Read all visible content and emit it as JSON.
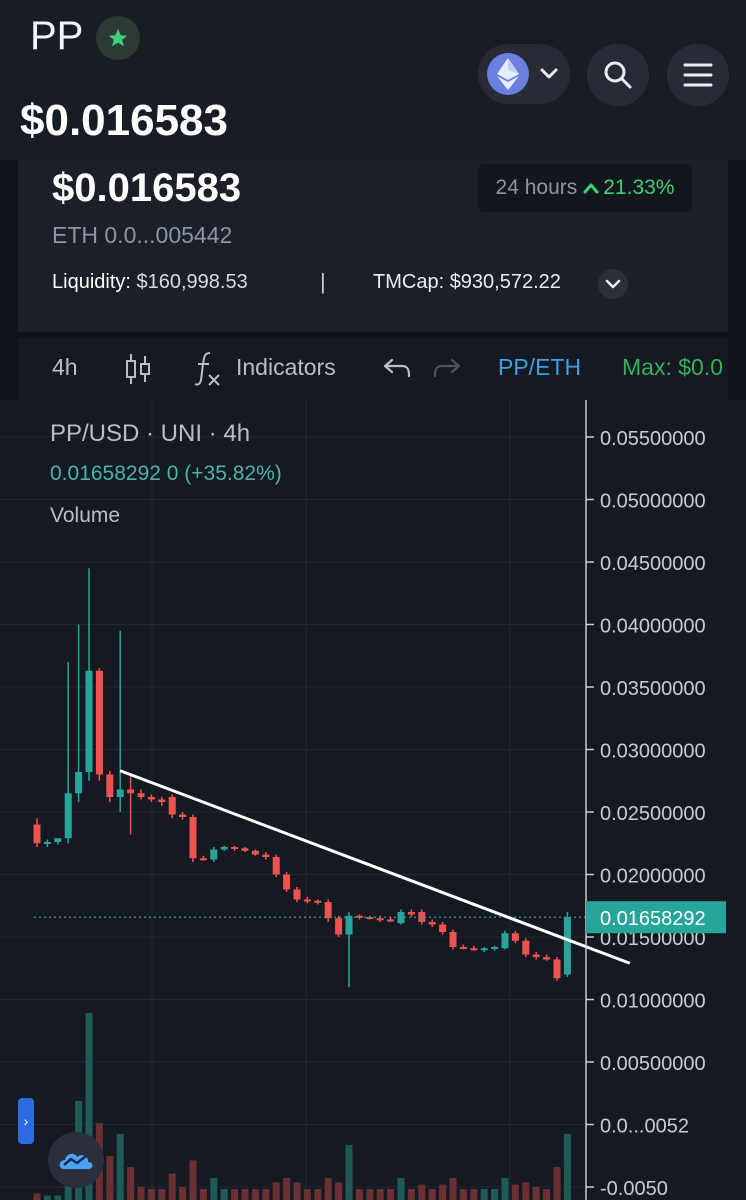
{
  "header": {
    "token_symbol": "PP",
    "price": "$0.016583",
    "icons": {
      "favorite": "star-icon",
      "chain": "ethereum-icon",
      "chain_menu": "chevron-down-icon",
      "search": "search-icon",
      "menu": "hamburger-menu-icon"
    }
  },
  "info": {
    "price_usd": "$0.016583",
    "price_eth": "ETH 0.0...005442",
    "change_period": "24 hours",
    "change_value": "21.33%",
    "liquidity_label": "Liquidity:",
    "liquidity_value": "$160,998.53",
    "separator": "|",
    "mcap_label": "TMCap:",
    "mcap_value": "$930,572.22"
  },
  "toolbar": {
    "interval": "4h",
    "indicators_label": "Indicators",
    "pair": "PP/ETH",
    "max_label": "Max: $0.0"
  },
  "chart": {
    "legend_title": "PP/USD · UNI · 4h",
    "legend_values": "0.01658292  0 (+35.82%)",
    "volume_label": "Volume",
    "current_price_label": "0.01658292",
    "colors": {
      "up": "#26a69a",
      "down": "#ef5350",
      "axis_text": "#c8ccd2",
      "trendline": "#ffffff",
      "price_tag": "#26a69a"
    }
  },
  "chart_data": {
    "type": "candlestick",
    "title": "PP/USD · UNI · 4h",
    "y_ticks": [
      "0.05500000",
      "0.05000000",
      "0.04500000",
      "0.04000000",
      "0.03500000",
      "0.03000000",
      "0.02500000",
      "0.02000000",
      "0.01500000",
      "0.01000000",
      "0.00500000",
      "0.0...0052",
      "-0.0050"
    ],
    "ylim": [
      -0.005,
      0.055
    ],
    "current_price": 0.01658292,
    "candles": [
      {
        "o": 0.024,
        "h": 0.0245,
        "l": 0.0222,
        "c": 0.0225
      },
      {
        "o": 0.0225,
        "h": 0.0228,
        "l": 0.0222,
        "c": 0.0226
      },
      {
        "o": 0.0226,
        "h": 0.0229,
        "l": 0.0224,
        "c": 0.0229
      },
      {
        "o": 0.0229,
        "h": 0.037,
        "l": 0.0225,
        "c": 0.0265
      },
      {
        "o": 0.0265,
        "h": 0.04,
        "l": 0.0258,
        "c": 0.0282
      },
      {
        "o": 0.0282,
        "h": 0.0445,
        "l": 0.0275,
        "c": 0.0363
      },
      {
        "o": 0.0363,
        "h": 0.0365,
        "l": 0.0275,
        "c": 0.028
      },
      {
        "o": 0.028,
        "h": 0.0283,
        "l": 0.0258,
        "c": 0.0262
      },
      {
        "o": 0.0262,
        "h": 0.0395,
        "l": 0.025,
        "c": 0.0268
      },
      {
        "o": 0.0268,
        "h": 0.028,
        "l": 0.0232,
        "c": 0.0265
      },
      {
        "o": 0.0265,
        "h": 0.0268,
        "l": 0.026,
        "c": 0.0262
      },
      {
        "o": 0.0262,
        "h": 0.0264,
        "l": 0.0258,
        "c": 0.026
      },
      {
        "o": 0.026,
        "h": 0.0262,
        "l": 0.0255,
        "c": 0.0258
      },
      {
        "o": 0.0262,
        "h": 0.0264,
        "l": 0.0245,
        "c": 0.0248
      },
      {
        "o": 0.0248,
        "h": 0.025,
        "l": 0.0244,
        "c": 0.0246
      },
      {
        "o": 0.0246,
        "h": 0.0248,
        "l": 0.021,
        "c": 0.0213
      },
      {
        "o": 0.0213,
        "h": 0.0215,
        "l": 0.0211,
        "c": 0.0212
      },
      {
        "o": 0.0212,
        "h": 0.0222,
        "l": 0.021,
        "c": 0.022
      },
      {
        "o": 0.022,
        "h": 0.0223,
        "l": 0.0219,
        "c": 0.0222
      },
      {
        "o": 0.0222,
        "h": 0.0223,
        "l": 0.0219,
        "c": 0.0221
      },
      {
        "o": 0.0221,
        "h": 0.0222,
        "l": 0.0218,
        "c": 0.0219
      },
      {
        "o": 0.0219,
        "h": 0.022,
        "l": 0.0215,
        "c": 0.0216
      },
      {
        "o": 0.0216,
        "h": 0.0218,
        "l": 0.0212,
        "c": 0.0214
      },
      {
        "o": 0.0214,
        "h": 0.0216,
        "l": 0.0198,
        "c": 0.02
      },
      {
        "o": 0.02,
        "h": 0.0202,
        "l": 0.0186,
        "c": 0.0188
      },
      {
        "o": 0.0188,
        "h": 0.019,
        "l": 0.0178,
        "c": 0.018
      },
      {
        "o": 0.018,
        "h": 0.0182,
        "l": 0.0177,
        "c": 0.0179
      },
      {
        "o": 0.0179,
        "h": 0.018,
        "l": 0.0176,
        "c": 0.0178
      },
      {
        "o": 0.0178,
        "h": 0.018,
        "l": 0.0162,
        "c": 0.0165
      },
      {
        "o": 0.0165,
        "h": 0.0167,
        "l": 0.015,
        "c": 0.0152
      },
      {
        "o": 0.0152,
        "h": 0.017,
        "l": 0.011,
        "c": 0.0167
      },
      {
        "o": 0.0167,
        "h": 0.0168,
        "l": 0.0164,
        "c": 0.0166
      },
      {
        "o": 0.0166,
        "h": 0.0167,
        "l": 0.0164,
        "c": 0.0165
      },
      {
        "o": 0.0165,
        "h": 0.0167,
        "l": 0.0162,
        "c": 0.0164
      },
      {
        "o": 0.0164,
        "h": 0.0166,
        "l": 0.0162,
        "c": 0.0163
      },
      {
        "o": 0.0161,
        "h": 0.0172,
        "l": 0.016,
        "c": 0.017
      },
      {
        "o": 0.017,
        "h": 0.0172,
        "l": 0.0166,
        "c": 0.0168
      },
      {
        "o": 0.017,
        "h": 0.0172,
        "l": 0.016,
        "c": 0.0162
      },
      {
        "o": 0.0162,
        "h": 0.0164,
        "l": 0.0158,
        "c": 0.016
      },
      {
        "o": 0.016,
        "h": 0.0162,
        "l": 0.0152,
        "c": 0.0154
      },
      {
        "o": 0.0154,
        "h": 0.0156,
        "l": 0.014,
        "c": 0.0142
      },
      {
        "o": 0.0142,
        "h": 0.0144,
        "l": 0.014,
        "c": 0.0141
      },
      {
        "o": 0.0141,
        "h": 0.0143,
        "l": 0.0139,
        "c": 0.014
      },
      {
        "o": 0.014,
        "h": 0.0142,
        "l": 0.0138,
        "c": 0.0141
      },
      {
        "o": 0.0141,
        "h": 0.0143,
        "l": 0.0139,
        "c": 0.0142
      },
      {
        "o": 0.0141,
        "h": 0.0155,
        "l": 0.014,
        "c": 0.0153
      },
      {
        "o": 0.0153,
        "h": 0.0155,
        "l": 0.0145,
        "c": 0.0147
      },
      {
        "o": 0.0147,
        "h": 0.0149,
        "l": 0.0134,
        "c": 0.0136
      },
      {
        "o": 0.0136,
        "h": 0.0138,
        "l": 0.0132,
        "c": 0.0134
      },
      {
        "o": 0.0134,
        "h": 0.0136,
        "l": 0.0131,
        "c": 0.0132
      },
      {
        "o": 0.0132,
        "h": 0.0134,
        "l": 0.0115,
        "c": 0.0117
      },
      {
        "o": 0.012,
        "h": 0.017,
        "l": 0.0118,
        "c": 0.0166
      }
    ],
    "volume": [
      0.3,
      0.2,
      0.2,
      2.5,
      4.5,
      8.5,
      3.5,
      2,
      3,
      1.5,
      0.6,
      0.5,
      0.5,
      1.2,
      0.6,
      1.8,
      0.5,
      1,
      0.5,
      0.5,
      0.5,
      0.5,
      0.5,
      0.8,
      1,
      0.8,
      0.5,
      0.5,
      1,
      0.8,
      2.5,
      0.5,
      0.5,
      0.5,
      0.5,
      1,
      0.5,
      0.7,
      0.5,
      0.7,
      1,
      0.5,
      0.5,
      0.5,
      0.5,
      1,
      0.7,
      0.8,
      0.6,
      0.5,
      1.5,
      3
    ],
    "trendline": [
      {
        "i": 8,
        "p": 0.0283
      },
      {
        "i": 57,
        "p": 0.0129
      }
    ]
  }
}
